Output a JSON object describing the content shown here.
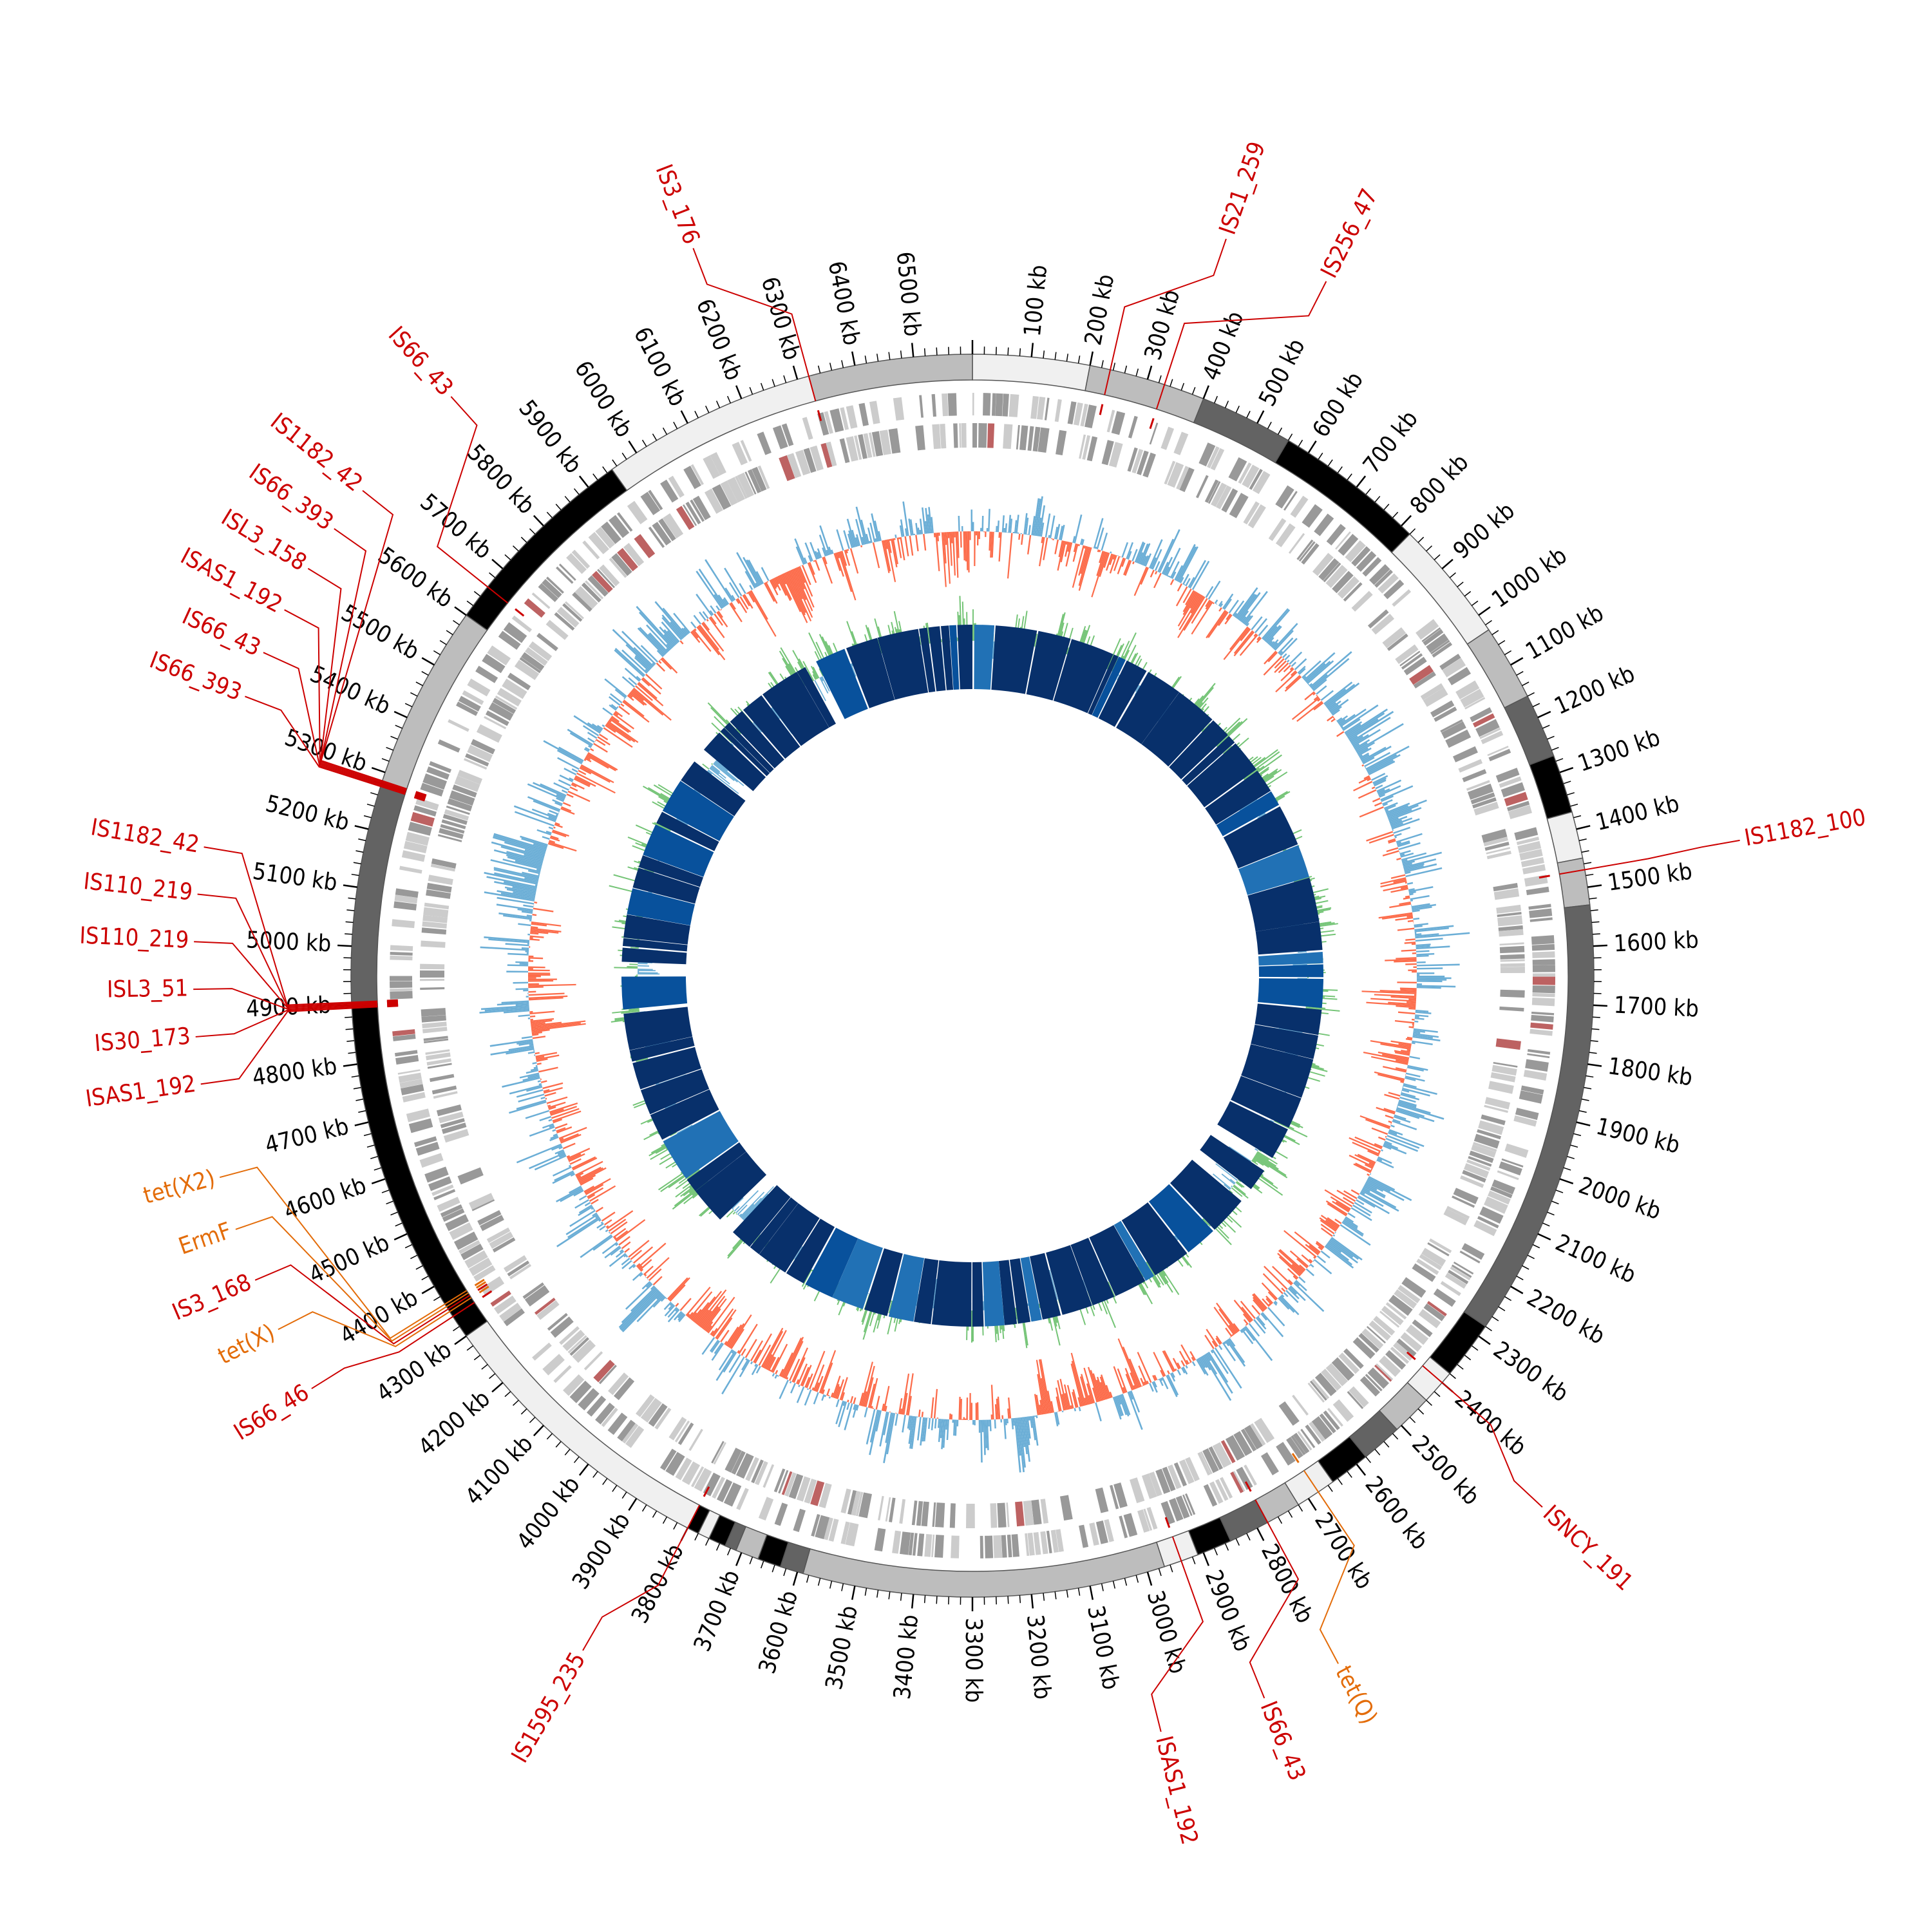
{
  "genome": {
    "length_kb": 6600,
    "tick_unit": "kb",
    "tick_labels": [
      "100 kb",
      "200 kb",
      "300 kb",
      "400 kb",
      "500 kb",
      "600 kb",
      "700 kb",
      "800 kb",
      "900 kb",
      "1000 kb",
      "1100 kb",
      "1200 kb",
      "1300 kb",
      "1400 kb",
      "1500 kb",
      "1600 kb",
      "1700 kb",
      "1800 kb",
      "1900 kb",
      "2000 kb",
      "2100 kb",
      "2200 kb",
      "2300 kb",
      "2400 kb",
      "2500 kb",
      "2600 kb",
      "2700 kb",
      "2800 kb",
      "2900 kb",
      "3000 kb",
      "3100 kb",
      "3200 kb",
      "3300 kb",
      "3400 kb",
      "3500 kb",
      "3600 kb",
      "3700 kb",
      "3800 kb",
      "3900 kb",
      "4000 kb",
      "4100 kb",
      "4200 kb",
      "4300 kb",
      "4400 kb",
      "4500 kb",
      "4600 kb",
      "4700 kb",
      "4800 kb",
      "4900 kb",
      "5000 kb",
      "5100 kb",
      "5200 kb",
      "5300 kb",
      "5400 kb",
      "5500 kb",
      "5600 kb",
      "5700 kb",
      "5800 kb",
      "5900 kb",
      "6000 kb",
      "6100 kb",
      "6200 kb",
      "6300 kb",
      "6400 kb",
      "6500 kb"
    ]
  },
  "contigs": [
    {
      "start": 0,
      "end": 200,
      "color": "#f0f0f0"
    },
    {
      "start": 200,
      "end": 400,
      "color": "#bdbdbd"
    },
    {
      "start": 400,
      "end": 560,
      "color": "#636363"
    },
    {
      "start": 560,
      "end": 820,
      "color": "#000000"
    },
    {
      "start": 820,
      "end": 1030,
      "color": "#f0f0f0"
    },
    {
      "start": 1030,
      "end": 1160,
      "color": "#bdbdbd"
    },
    {
      "start": 1160,
      "end": 1270,
      "color": "#636363"
    },
    {
      "start": 1270,
      "end": 1370,
      "color": "#000000"
    },
    {
      "start": 1370,
      "end": 1450,
      "color": "#f0f0f0"
    },
    {
      "start": 1450,
      "end": 1530,
      "color": "#bdbdbd"
    },
    {
      "start": 1530,
      "end": 2280,
      "color": "#636363"
    },
    {
      "start": 2280,
      "end": 2380,
      "color": "#000000"
    },
    {
      "start": 2380,
      "end": 2440,
      "color": "#f0f0f0"
    },
    {
      "start": 2440,
      "end": 2510,
      "color": "#bdbdbd"
    },
    {
      "start": 2510,
      "end": 2580,
      "color": "#636363"
    },
    {
      "start": 2580,
      "end": 2650,
      "color": "#000000"
    },
    {
      "start": 2650,
      "end": 2720,
      "color": "#f0f0f0"
    },
    {
      "start": 2720,
      "end": 2780,
      "color": "#bdbdbd"
    },
    {
      "start": 2780,
      "end": 2850,
      "color": "#636363"
    },
    {
      "start": 2850,
      "end": 2910,
      "color": "#000000"
    },
    {
      "start": 2910,
      "end": 2970,
      "color": "#f0f0f0"
    },
    {
      "start": 2970,
      "end": 3590,
      "color": "#bdbdbd"
    },
    {
      "start": 3590,
      "end": 3630,
      "color": "#636363"
    },
    {
      "start": 3630,
      "end": 3670,
      "color": "#000000"
    },
    {
      "start": 3670,
      "end": 3710,
      "color": "#bdbdbd"
    },
    {
      "start": 3710,
      "end": 3730,
      "color": "#636363"
    },
    {
      "start": 3730,
      "end": 3760,
      "color": "#000000"
    },
    {
      "start": 3760,
      "end": 3780,
      "color": "#f0f0f0"
    },
    {
      "start": 3780,
      "end": 3800,
      "color": "#000000"
    },
    {
      "start": 3800,
      "end": 4300,
      "color": "#f0f0f0"
    },
    {
      "start": 4300,
      "end": 4900,
      "color": "#000000"
    },
    {
      "start": 4900,
      "end": 5280,
      "color": "#636363"
    },
    {
      "start": 5280,
      "end": 5600,
      "color": "#bdbdbd"
    },
    {
      "start": 5600,
      "end": 5950,
      "color": "#000000"
    },
    {
      "start": 5950,
      "end": 6320,
      "color": "#f0f0f0"
    },
    {
      "start": 6320,
      "end": 6600,
      "color": "#bdbdbd"
    }
  ],
  "annotations": [
    {
      "label": "IS3_176",
      "pos": 6320,
      "color": "#cc0000",
      "text_angle": -21
    },
    {
      "label": "IS21_259",
      "pos": 235,
      "color": "#cc0000",
      "text_angle": 19
    },
    {
      "label": "IS256_47",
      "pos": 330,
      "color": "#cc0000",
      "text_angle": 27
    },
    {
      "label": "IS1182_100",
      "pos": 1470,
      "color": "#cc0000",
      "text_angle": 80
    },
    {
      "label": "ISNCY_191",
      "pos": 2400,
      "color": "#cc0000",
      "text_angle": 133
    },
    {
      "label": "tet(Q)",
      "pos": 2680,
      "color": "#e36c09",
      "text_angle": 152
    },
    {
      "label": "IS66_43",
      "pos": 2780,
      "color": "#cc0000",
      "text_angle": 158
    },
    {
      "label": "ISAS1_192",
      "pos": 2940,
      "color": "#cc0000",
      "text_angle": 166
    },
    {
      "label": "IS1595_235",
      "pos": 3800,
      "color": "#cc0000",
      "text_angle": 210
    },
    {
      "label": "IS66_46",
      "pos": 4340,
      "color": "#cc0000",
      "text_angle": 238
    },
    {
      "label": "tet(X)",
      "pos": 4350,
      "color": "#e36c09",
      "text_angle": 243
    },
    {
      "label": "IS3_168",
      "pos": 4355,
      "color": "#cc0000",
      "text_angle": 247
    },
    {
      "label": "ErmF",
      "pos": 4360,
      "color": "#e36c09",
      "text_angle": 251
    },
    {
      "label": "tet(X2)",
      "pos": 4365,
      "color": "#e36c09",
      "text_angle": 255
    },
    {
      "label": "ISAS1_192",
      "pos": 4895,
      "color": "#cc0000",
      "text_angle": 262
    },
    {
      "label": "IS30_173",
      "pos": 4897,
      "color": "#cc0000",
      "text_angle": 265.5
    },
    {
      "label": "ISL3_51",
      "pos": 4899,
      "color": "#cc0000",
      "text_angle": 269
    },
    {
      "label": "IS110_219",
      "pos": 4901,
      "color": "#cc0000",
      "text_angle": 272.5
    },
    {
      "label": "IS110_219",
      "pos": 4903,
      "color": "#cc0000",
      "text_angle": 276
    },
    {
      "label": "IS1182_42",
      "pos": 4905,
      "color": "#cc0000",
      "text_angle": 279.5
    },
    {
      "label": "IS66_393",
      "pos": 5275,
      "color": "#cc0000",
      "text_angle": 291
    },
    {
      "label": "IS66_43",
      "pos": 5277,
      "color": "#cc0000",
      "text_angle": 294.5
    },
    {
      "label": "ISAS1_192",
      "pos": 5279,
      "color": "#cc0000",
      "text_angle": 298
    },
    {
      "label": "ISL3_158",
      "pos": 5281,
      "color": "#cc0000",
      "text_angle": 301.5
    },
    {
      "label": "IS66_393",
      "pos": 5283,
      "color": "#cc0000",
      "text_angle": 305
    },
    {
      "label": "IS1182_42",
      "pos": 5285,
      "color": "#cc0000",
      "text_angle": 308.5
    },
    {
      "label": "IS66_43",
      "pos": 5660,
      "color": "#cc0000",
      "text_angle": 318
    }
  ],
  "tracks": {
    "genes_colors": [
      "#999999",
      "#cccccc",
      "#bd6262"
    ],
    "gc_content_colors": {
      "high": "#6baed6",
      "low": "#fc6c4b"
    },
    "gc_skew_colors": {
      "positive": "#74c476",
      "negative": "#6baed6"
    },
    "blast_colors": [
      "#08306b",
      "#08519c",
      "#2171b5"
    ]
  }
}
